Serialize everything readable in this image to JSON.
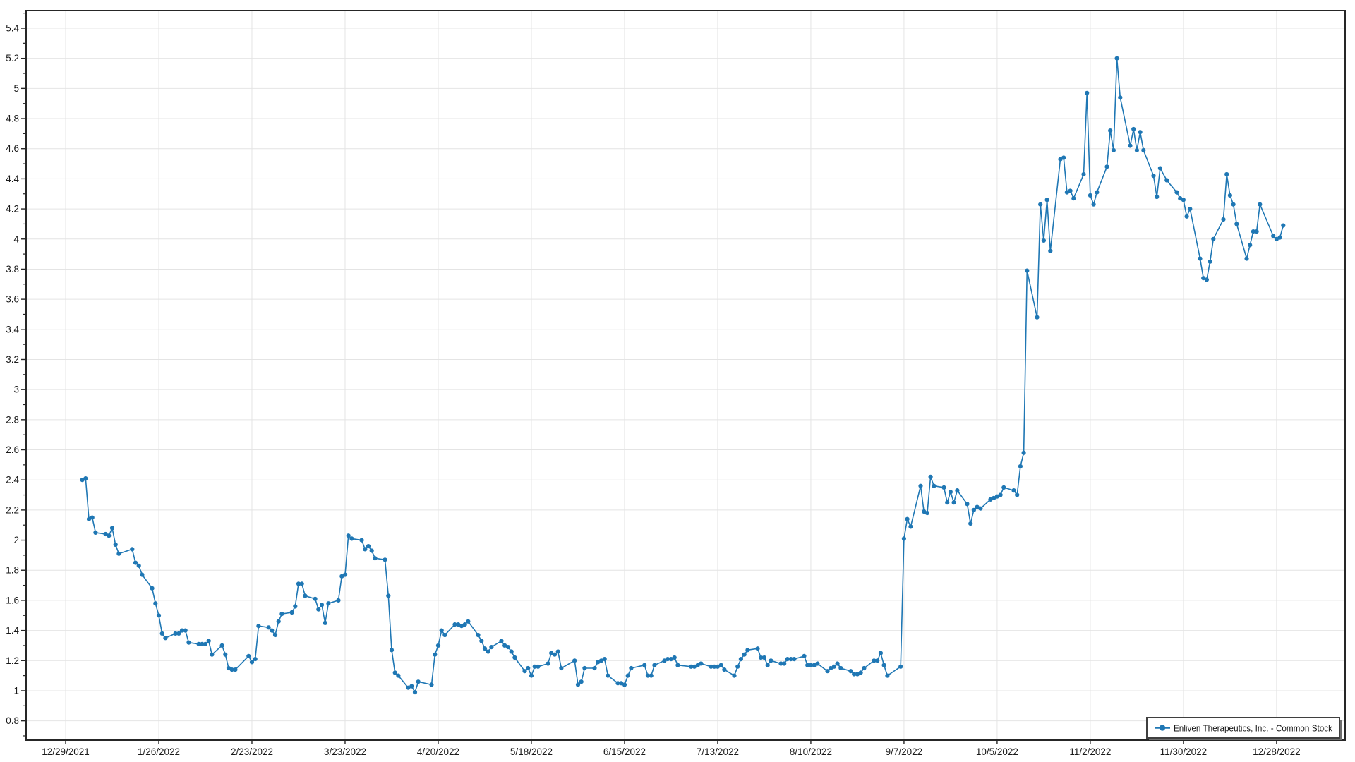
{
  "chart_data": {
    "type": "line",
    "title": "",
    "legend_label": "Enliven Therapeutics, Inc.  - Common Stock",
    "legend_position": "bottom-right",
    "grid": true,
    "line_color": "#1f77b4",
    "marker": "circle",
    "background_color": "#ffffff",
    "grid_color": "#e4e4e4",
    "frame_color": "#262626",
    "ylim": [
      0.67,
      5.52
    ],
    "y_tick_labels": [
      "0.8",
      "1",
      "1.2",
      "1.4",
      "1.6",
      "1.8",
      "2",
      "2.2",
      "2.4",
      "2.6",
      "2.8",
      "3",
      "3.2",
      "3.4",
      "3.6",
      "3.8",
      "4",
      "4.2",
      "4.4",
      "4.6",
      "4.8",
      "5",
      "5.2",
      "5.4"
    ],
    "x_tick_labels": [
      "12/29/2021",
      "1/26/2022",
      "2/23/2022",
      "3/23/2022",
      "4/20/2022",
      "5/18/2022",
      "6/15/2022",
      "7/13/2022",
      "8/10/2022",
      "9/7/2022",
      "10/5/2022",
      "11/2/2022",
      "11/30/2022",
      "12/28/2022"
    ],
    "series_year": 2022,
    "dates": [
      "1/3",
      "1/4",
      "1/5",
      "1/6",
      "1/7",
      "1/10",
      "1/11",
      "1/12",
      "1/13",
      "1/14",
      "1/18",
      "1/19",
      "1/20",
      "1/21",
      "1/24",
      "1/25",
      "1/26",
      "1/27",
      "1/28",
      "1/31",
      "2/1",
      "2/2",
      "2/3",
      "2/4",
      "2/7",
      "2/8",
      "2/9",
      "2/10",
      "2/11",
      "2/14",
      "2/15",
      "2/16",
      "2/17",
      "2/18",
      "2/22",
      "2/23",
      "2/24",
      "2/25",
      "2/28",
      "3/1",
      "3/2",
      "3/3",
      "3/4",
      "3/7",
      "3/8",
      "3/9",
      "3/10",
      "3/11",
      "3/14",
      "3/15",
      "3/16",
      "3/17",
      "3/18",
      "3/21",
      "3/22",
      "3/23",
      "3/24",
      "3/25",
      "3/28",
      "3/29",
      "3/30",
      "3/31",
      "4/1",
      "4/4",
      "4/5",
      "4/6",
      "4/7",
      "4/8",
      "4/11",
      "4/12",
      "4/13",
      "4/14",
      "4/18",
      "4/19",
      "4/20",
      "4/21",
      "4/22",
      "4/25",
      "4/26",
      "4/27",
      "4/28",
      "4/29",
      "5/2",
      "5/3",
      "5/4",
      "5/5",
      "5/6",
      "5/9",
      "5/10",
      "5/11",
      "5/12",
      "5/13",
      "5/16",
      "5/17",
      "5/18",
      "5/19",
      "5/20",
      "5/23",
      "5/24",
      "5/25",
      "5/26",
      "5/27",
      "5/31",
      "6/1",
      "6/2",
      "6/3",
      "6/6",
      "6/7",
      "6/8",
      "6/9",
      "6/10",
      "6/13",
      "6/14",
      "6/15",
      "6/16",
      "6/17",
      "6/21",
      "6/22",
      "6/23",
      "6/24",
      "6/27",
      "6/28",
      "6/29",
      "6/30",
      "7/1",
      "7/5",
      "7/6",
      "7/7",
      "7/8",
      "7/11",
      "7/12",
      "7/13",
      "7/14",
      "7/15",
      "7/18",
      "7/19",
      "7/20",
      "7/21",
      "7/22",
      "7/25",
      "7/26",
      "7/27",
      "7/28",
      "7/29",
      "8/1",
      "8/2",
      "8/3",
      "8/4",
      "8/5",
      "8/8",
      "8/9",
      "8/10",
      "8/11",
      "8/12",
      "8/15",
      "8/16",
      "8/17",
      "8/18",
      "8/19",
      "8/22",
      "8/23",
      "8/24",
      "8/25",
      "8/26",
      "8/29",
      "8/30",
      "8/31",
      "9/1",
      "9/2",
      "9/6",
      "9/7",
      "9/8",
      "9/9",
      "9/12",
      "9/13",
      "9/14",
      "9/15",
      "9/16",
      "9/19",
      "9/20",
      "9/21",
      "9/22",
      "9/23",
      "9/26",
      "9/27",
      "9/28",
      "9/29",
      "9/30",
      "10/3",
      "10/4",
      "10/5",
      "10/6",
      "10/7",
      "10/10",
      "10/11",
      "10/12",
      "10/13",
      "10/14",
      "10/17",
      "10/18",
      "10/19",
      "10/20",
      "10/21",
      "10/24",
      "10/25",
      "10/26",
      "10/27",
      "10/28",
      "10/31",
      "11/1",
      "11/2",
      "11/3",
      "11/4",
      "11/7",
      "11/8",
      "11/9",
      "11/10",
      "11/11",
      "11/14",
      "11/15",
      "11/16",
      "11/17",
      "11/18",
      "11/21",
      "11/22",
      "11/23",
      "11/25",
      "11/28",
      "11/29",
      "11/30",
      "12/1",
      "12/2",
      "12/5",
      "12/6",
      "12/7",
      "12/8",
      "12/9",
      "12/12",
      "12/13",
      "12/14",
      "12/15",
      "12/16",
      "12/19",
      "12/20",
      "12/21",
      "12/22",
      "12/23",
      "12/27",
      "12/28",
      "12/29",
      "12/30"
    ],
    "values": [
      2.4,
      2.41,
      2.14,
      2.15,
      2.05,
      2.04,
      2.03,
      2.08,
      1.97,
      1.91,
      1.94,
      1.85,
      1.83,
      1.77,
      1.68,
      1.58,
      1.5,
      1.38,
      1.35,
      1.38,
      1.38,
      1.4,
      1.4,
      1.32,
      1.31,
      1.31,
      1.31,
      1.33,
      1.24,
      1.3,
      1.24,
      1.15,
      1.14,
      1.14,
      1.23,
      1.19,
      1.21,
      1.43,
      1.42,
      1.4,
      1.37,
      1.46,
      1.51,
      1.52,
      1.56,
      1.71,
      1.71,
      1.63,
      1.61,
      1.54,
      1.57,
      1.45,
      1.58,
      1.6,
      1.76,
      1.77,
      2.03,
      2.01,
      2.0,
      1.94,
      1.96,
      1.93,
      1.88,
      1.87,
      1.63,
      1.27,
      1.12,
      1.1,
      1.02,
      1.03,
      0.99,
      1.06,
      1.04,
      1.24,
      1.3,
      1.4,
      1.37,
      1.44,
      1.44,
      1.43,
      1.44,
      1.46,
      1.37,
      1.33,
      1.28,
      1.26,
      1.29,
      1.33,
      1.3,
      1.29,
      1.26,
      1.22,
      1.13,
      1.15,
      1.1,
      1.16,
      1.16,
      1.18,
      1.25,
      1.24,
      1.26,
      1.15,
      1.2,
      1.04,
      1.06,
      1.15,
      1.15,
      1.19,
      1.2,
      1.21,
      1.1,
      1.05,
      1.05,
      1.04,
      1.1,
      1.15,
      1.17,
      1.1,
      1.1,
      1.17,
      1.2,
      1.21,
      1.21,
      1.22,
      1.17,
      1.16,
      1.16,
      1.17,
      1.18,
      1.16,
      1.16,
      1.16,
      1.17,
      1.14,
      1.1,
      1.16,
      1.21,
      1.24,
      1.27,
      1.28,
      1.22,
      1.22,
      1.17,
      1.2,
      1.18,
      1.18,
      1.21,
      1.21,
      1.21,
      1.23,
      1.17,
      1.17,
      1.17,
      1.18,
      1.13,
      1.15,
      1.16,
      1.18,
      1.15,
      1.13,
      1.11,
      1.11,
      1.12,
      1.15,
      1.2,
      1.2,
      1.25,
      1.17,
      1.1,
      1.16,
      2.01,
      2.14,
      2.09,
      2.36,
      2.19,
      2.18,
      2.42,
      2.36,
      2.35,
      2.25,
      2.32,
      2.25,
      2.33,
      2.24,
      2.11,
      2.2,
      2.22,
      2.21,
      2.27,
      2.28,
      2.29,
      2.3,
      2.35,
      2.33,
      2.3,
      2.49,
      2.58,
      3.79,
      3.48,
      4.23,
      3.99,
      4.26,
      3.92,
      4.53,
      4.54,
      4.31,
      4.32,
      4.27,
      4.43,
      4.97,
      4.29,
      4.23,
      4.31,
      4.48,
      4.72,
      4.59,
      5.2,
      4.94,
      4.62,
      4.73,
      4.59,
      4.71,
      4.59,
      4.42,
      4.28,
      4.47,
      4.39,
      4.31,
      4.27,
      4.26,
      4.15,
      4.2,
      3.87,
      3.74,
      3.73,
      3.85,
      4.0,
      4.13,
      4.43,
      4.29,
      4.23,
      4.1,
      3.87,
      3.96,
      4.05,
      4.05,
      4.23,
      4.02,
      4.0,
      4.01,
      4.09
    ]
  }
}
